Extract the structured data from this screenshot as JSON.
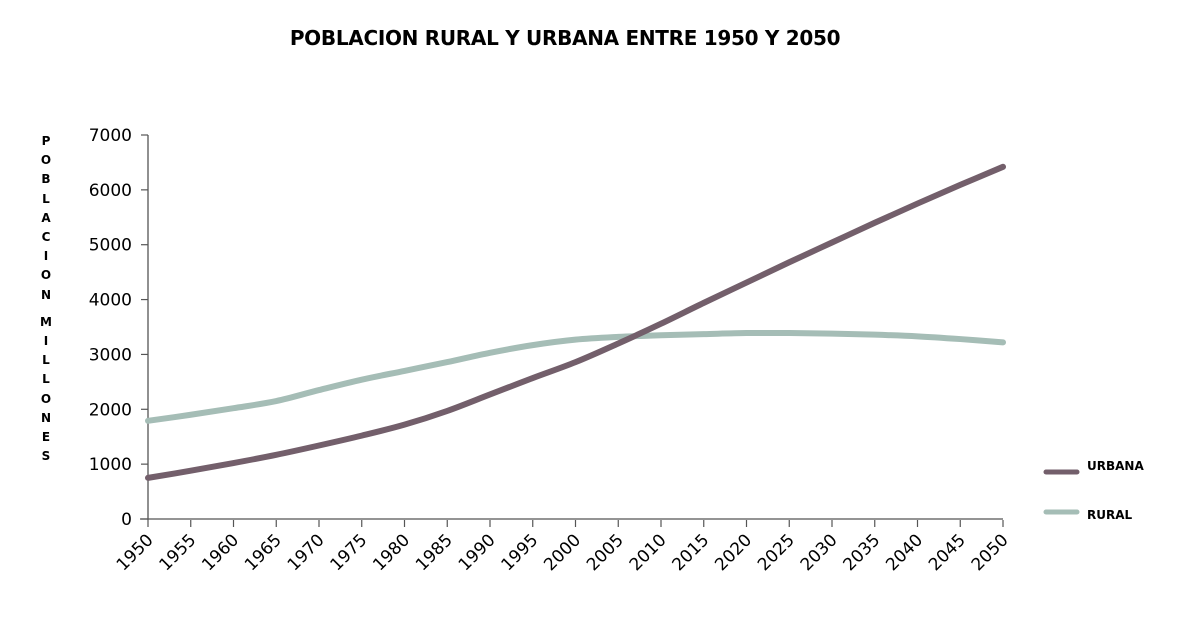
{
  "chart_data": {
    "type": "line",
    "title": "POBLACION RURAL Y URBANA ENTRE 1950 Y 2050",
    "xlabel": "",
    "ylabel": "POBLACION MILLONES",
    "x": [
      1950,
      1955,
      1960,
      1965,
      1970,
      1975,
      1980,
      1985,
      1990,
      1995,
      2000,
      2005,
      2010,
      2015,
      2020,
      2025,
      2030,
      2035,
      2040,
      2045,
      2050
    ],
    "x_tick_labels": [
      "1950",
      "1955",
      "1960",
      "1965",
      "1970",
      "1975",
      "1980",
      "1985",
      "1990",
      "1995",
      "2000",
      "2005",
      "2010",
      "2015",
      "2020",
      "2025",
      "2030",
      "2035",
      "2040",
      "2045",
      "2050"
    ],
    "y_ticks": [
      0,
      1000,
      2000,
      3000,
      4000,
      5000,
      6000,
      7000
    ],
    "y_tick_labels": [
      "0",
      "1000",
      "2000",
      "3000",
      "4000",
      "5000",
      "6000",
      "7000"
    ],
    "ylim": [
      0,
      7000
    ],
    "xlim": [
      1950,
      2050
    ],
    "grid": false,
    "legend_position": "right",
    "series": [
      {
        "name": "URBANA",
        "color": "#735f6b",
        "values": [
          750,
          880,
          1020,
          1170,
          1340,
          1520,
          1720,
          1970,
          2270,
          2570,
          2860,
          3200,
          3560,
          3940,
          4310,
          4680,
          5040,
          5400,
          5750,
          6090,
          6420
        ]
      },
      {
        "name": "RURAL",
        "color": "#a5bdb6",
        "values": [
          1790,
          1900,
          2020,
          2150,
          2350,
          2540,
          2700,
          2860,
          3030,
          3170,
          3270,
          3320,
          3350,
          3370,
          3390,
          3390,
          3380,
          3360,
          3330,
          3280,
          3220
        ]
      }
    ]
  }
}
